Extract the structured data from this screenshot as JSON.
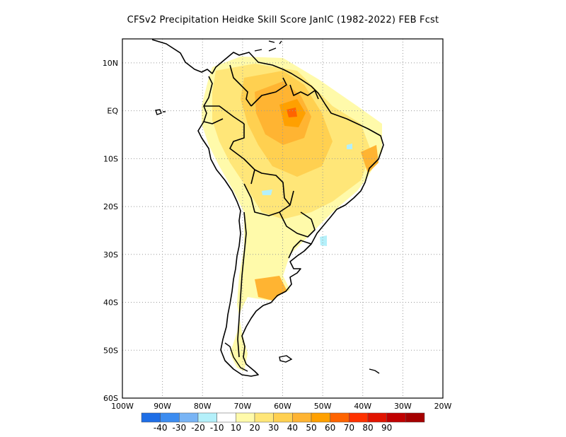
{
  "title": "CFSv2  Precipitation Heidke Skill Score JanIC (1982-2022) FEB Fcst",
  "map": {
    "lon_range": [
      -100,
      -20
    ],
    "lat_range": [
      -60,
      15
    ],
    "grid": "dotted",
    "lat_ticks": [
      {
        "value": 10,
        "label": "10N"
      },
      {
        "value": 0,
        "label": "EQ"
      },
      {
        "value": -10,
        "label": "10S"
      },
      {
        "value": -20,
        "label": "20S"
      },
      {
        "value": -30,
        "label": "30S"
      },
      {
        "value": -40,
        "label": "40S"
      },
      {
        "value": -50,
        "label": "50S"
      },
      {
        "value": -60,
        "label": "60S"
      }
    ],
    "lon_ticks": [
      {
        "value": -100,
        "label": "100W"
      },
      {
        "value": -90,
        "label": "90W"
      },
      {
        "value": -80,
        "label": "80W"
      },
      {
        "value": -70,
        "label": "70W"
      },
      {
        "value": -60,
        "label": "60W"
      },
      {
        "value": -50,
        "label": "50W"
      },
      {
        "value": -40,
        "label": "40W"
      },
      {
        "value": -30,
        "label": "30W"
      },
      {
        "value": -20,
        "label": "20W"
      }
    ]
  },
  "colorbar": {
    "colors": [
      "#1e6ee6",
      "#3c8cf0",
      "#78b4f5",
      "#b4f0fa",
      "#ffffff",
      "#fffaaa",
      "#ffe678",
      "#ffd050",
      "#ffb432",
      "#ffa000",
      "#ff6400",
      "#ff3200",
      "#e11400",
      "#c00000",
      "#a50000"
    ],
    "labels": [
      "-40",
      "-30",
      "-20",
      "-10",
      "10",
      "20",
      "30",
      "40",
      "50",
      "60",
      "70",
      "80",
      "90"
    ]
  }
}
